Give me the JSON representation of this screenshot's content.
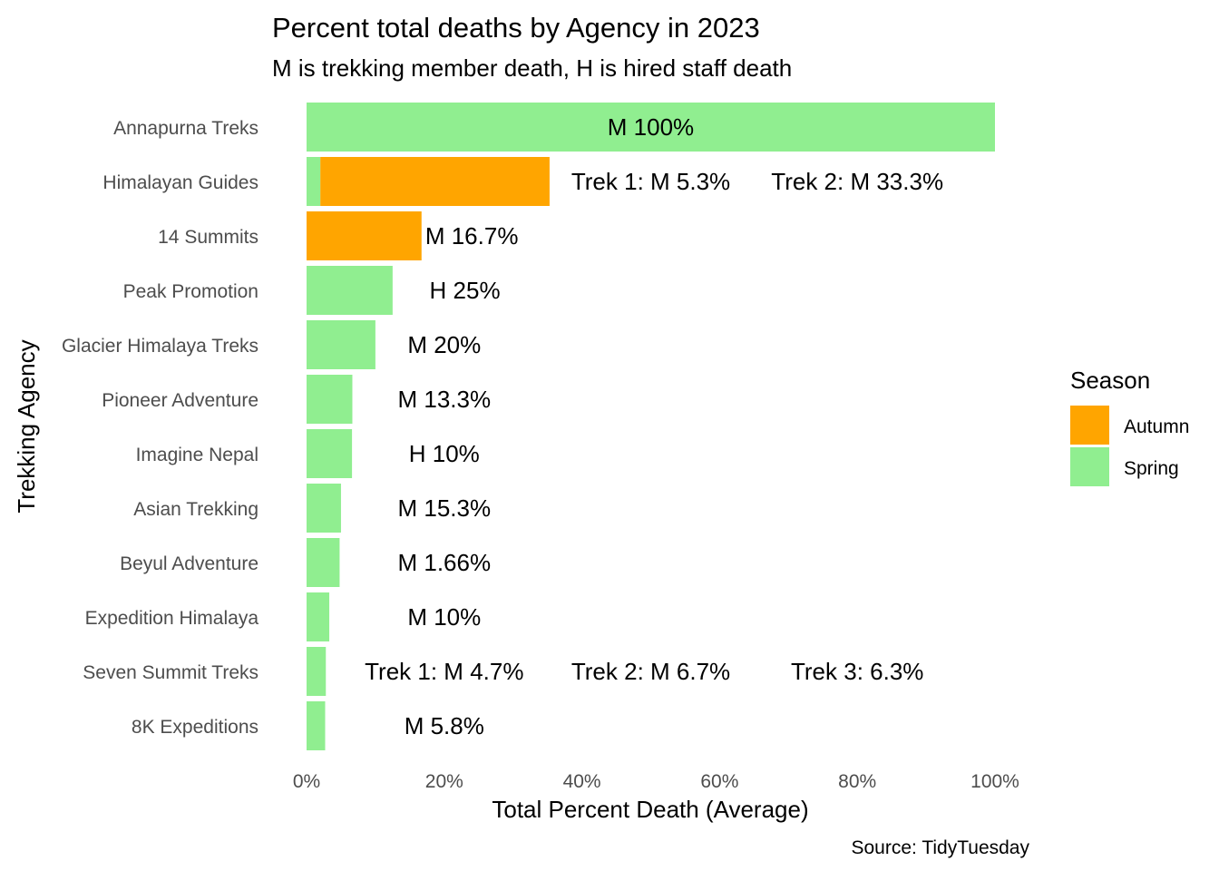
{
  "chart_data": {
    "type": "bar",
    "orientation": "horizontal",
    "stacked": true,
    "title": "Percent total deaths by Agency in 2023",
    "subtitle": "M is trekking member death, H is hired staff death",
    "xlabel": "Total Percent Death (Average)",
    "ylabel": "Trekking Agency",
    "caption": "Source: TidyTuesday",
    "xlim": [
      0,
      100
    ],
    "x_ticks": [
      "0%",
      "20%",
      "40%",
      "60%",
      "80%",
      "100%"
    ],
    "grid": false,
    "legend": {
      "title": "Season",
      "position": "right",
      "entries": [
        "Autumn",
        "Spring"
      ]
    },
    "colors": {
      "Autumn": "#FFA500",
      "Spring": "#90EE90"
    },
    "categories": [
      "Annapurna Treks",
      "Himalayan Guides",
      "14 Summits",
      "Peak Promotion",
      "Glacier Himalaya Treks",
      "Pioneer Adventure",
      "Imagine Nepal",
      "Asian Trekking",
      "Beyul Adventure",
      "Expedition Himalaya",
      "Seven Summit Treks",
      "8K Expeditions"
    ],
    "series": [
      {
        "name": "Spring",
        "values": [
          100,
          2,
          0,
          12.5,
          10,
          6.65,
          6.6,
          5,
          4.8,
          3.3,
          2.8,
          2.7
        ]
      },
      {
        "name": "Autumn",
        "values": [
          0,
          33.3,
          16.7,
          0,
          0,
          0,
          0,
          0,
          0,
          0,
          0,
          0
        ]
      }
    ],
    "annotations": [
      {
        "category": "Annapurna Treks",
        "labels": [
          {
            "text": "M 100%",
            "x": 50
          }
        ]
      },
      {
        "category": "Himalayan Guides",
        "labels": [
          {
            "text": "Trek 1: M 5.3%",
            "x": 50
          },
          {
            "text": "Trek 2: M 33.3%",
            "x": 80
          }
        ]
      },
      {
        "category": "14 Summits",
        "labels": [
          {
            "text": "M 16.7%",
            "x": 24
          }
        ]
      },
      {
        "category": "Peak Promotion",
        "labels": [
          {
            "text": "H 25%",
            "x": 23
          }
        ]
      },
      {
        "category": "Glacier Himalaya Treks",
        "labels": [
          {
            "text": "M 20%",
            "x": 20
          }
        ]
      },
      {
        "category": "Pioneer Adventure",
        "labels": [
          {
            "text": "M 13.3%",
            "x": 20
          }
        ]
      },
      {
        "category": "Imagine Nepal",
        "labels": [
          {
            "text": "H 10%",
            "x": 20
          }
        ]
      },
      {
        "category": "Asian Trekking",
        "labels": [
          {
            "text": "M 15.3%",
            "x": 20
          }
        ]
      },
      {
        "category": "Beyul Adventure",
        "labels": [
          {
            "text": "M 1.66%",
            "x": 20
          }
        ]
      },
      {
        "category": "Expedition Himalaya",
        "labels": [
          {
            "text": "M 10%",
            "x": 20
          }
        ]
      },
      {
        "category": "Seven Summit Treks",
        "labels": [
          {
            "text": "Trek 1: M 4.7%",
            "x": 20
          },
          {
            "text": "Trek 2: M 6.7%",
            "x": 50
          },
          {
            "text": "Trek 3: 6.3%",
            "x": 80
          }
        ]
      },
      {
        "category": "8K Expeditions",
        "labels": [
          {
            "text": "M 5.8%",
            "x": 20
          }
        ]
      }
    ]
  }
}
